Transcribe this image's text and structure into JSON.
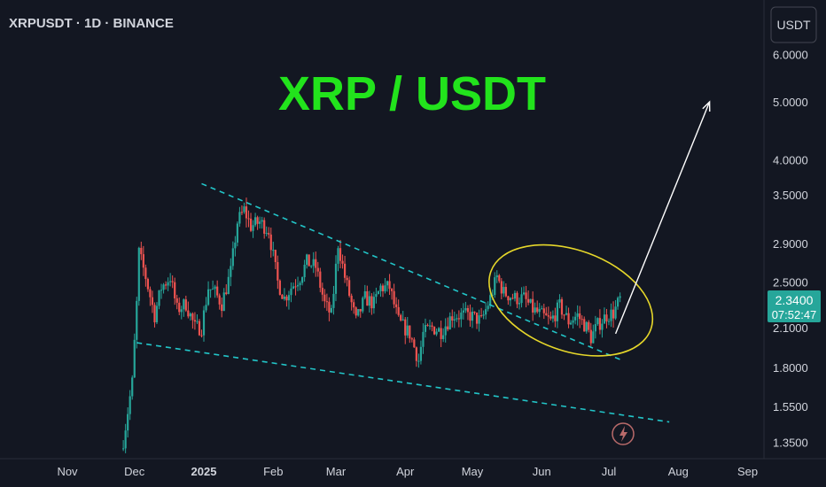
{
  "header": {
    "symbol_label": "XRPUSDT · 1D · BINANCE"
  },
  "currency_button": {
    "label": "USDT"
  },
  "colors": {
    "background": "#131722",
    "up": "#26a69a",
    "down": "#ef5350",
    "title": "#22e31c",
    "trendline": "#22c5c8",
    "ellipse": "#e6d72a",
    "arrow": "#ffffff",
    "price_tag": "#26a69a"
  },
  "chart_data": {
    "type": "candlestick",
    "title": "XRP / USDT",
    "scale": "log",
    "ylim": [
      1.3,
      7.0
    ],
    "y_ticks": [
      "6.0000",
      "5.0000",
      "4.0000",
      "3.5000",
      "2.9000",
      "2.5000",
      "2.1000",
      "1.8000",
      "1.5500",
      "1.3500"
    ],
    "x_ticks": [
      "Nov",
      "Dec",
      "2025",
      "Feb",
      "Mar",
      "Apr",
      "May",
      "Jun",
      "Jul",
      "Aug",
      "Sep"
    ],
    "last_price": "2.3400",
    "countdown": "07:52:47",
    "close_path": [
      [
        "2024-11-26",
        1.36
      ],
      [
        "2024-11-30",
        1.7
      ],
      [
        "2024-12-02",
        2.3
      ],
      [
        "2024-12-03",
        2.8
      ],
      [
        "2024-12-06",
        2.55
      ],
      [
        "2024-12-10",
        2.2
      ],
      [
        "2024-12-13",
        2.45
      ],
      [
        "2024-12-17",
        2.55
      ],
      [
        "2024-12-20",
        2.25
      ],
      [
        "2024-12-24",
        2.3
      ],
      [
        "2024-12-28",
        2.1
      ],
      [
        "2024-12-31",
        2.1
      ],
      [
        "2025-01-03",
        2.45
      ],
      [
        "2025-01-06",
        2.4
      ],
      [
        "2025-01-09",
        2.3
      ],
      [
        "2025-01-13",
        2.6
      ],
      [
        "2025-01-16",
        3.15
      ],
      [
        "2025-01-19",
        3.3
      ],
      [
        "2025-01-22",
        3.1
      ],
      [
        "2025-01-26",
        3.15
      ],
      [
        "2025-01-30",
        3.05
      ],
      [
        "2025-02-03",
        2.5
      ],
      [
        "2025-02-06",
        2.35
      ],
      [
        "2025-02-09",
        2.45
      ],
      [
        "2025-02-13",
        2.55
      ],
      [
        "2025-02-16",
        2.7
      ],
      [
        "2025-02-20",
        2.65
      ],
      [
        "2025-02-24",
        2.3
      ],
      [
        "2025-02-27",
        2.2
      ],
      [
        "2025-03-02",
        2.9
      ],
      [
        "2025-03-05",
        2.55
      ],
      [
        "2025-03-10",
        2.15
      ],
      [
        "2025-03-14",
        2.35
      ],
      [
        "2025-03-18",
        2.3
      ],
      [
        "2025-03-21",
        2.45
      ],
      [
        "2025-03-25",
        2.45
      ],
      [
        "2025-03-29",
        2.15
      ],
      [
        "2025-04-03",
        2.05
      ],
      [
        "2025-04-07",
        1.85
      ],
      [
        "2025-04-09",
        2.05
      ],
      [
        "2025-04-13",
        2.1
      ],
      [
        "2025-04-17",
        2.07
      ],
      [
        "2025-04-22",
        2.2
      ],
      [
        "2025-04-26",
        2.2
      ],
      [
        "2025-04-30",
        2.2
      ],
      [
        "2025-05-05",
        2.15
      ],
      [
        "2025-05-09",
        2.35
      ],
      [
        "2025-05-12",
        2.55
      ],
      [
        "2025-05-15",
        2.4
      ],
      [
        "2025-05-20",
        2.35
      ],
      [
        "2025-05-24",
        2.35
      ],
      [
        "2025-05-28",
        2.25
      ],
      [
        "2025-06-01",
        2.2
      ],
      [
        "2025-06-05",
        2.15
      ],
      [
        "2025-06-09",
        2.28
      ],
      [
        "2025-06-13",
        2.15
      ],
      [
        "2025-06-17",
        2.2
      ],
      [
        "2025-06-21",
        2.1
      ],
      [
        "2025-06-23",
        2.02
      ],
      [
        "2025-06-26",
        2.12
      ],
      [
        "2025-06-30",
        2.2
      ],
      [
        "2025-07-03",
        2.22
      ],
      [
        "2025-07-06",
        2.34
      ]
    ],
    "trendlines": [
      {
        "style": "dashed",
        "from": [
          "2024-12-31",
          3.65
        ],
        "to": [
          "2025-07-07",
          1.85
        ]
      },
      {
        "style": "dashed",
        "from": [
          "2024-12-02",
          1.98
        ],
        "to": [
          "2025-07-28",
          1.46
        ]
      }
    ],
    "arrow": {
      "from": [
        "2025-07-04",
        2.05
      ],
      "to": [
        "2025-08-15",
        5.0
      ]
    },
    "ellipse": {
      "center": [
        "2025-06-14",
        2.33
      ],
      "x_radius_days": 38,
      "y_range": [
        1.8,
        2.65
      ],
      "rotation_deg": 20
    }
  }
}
